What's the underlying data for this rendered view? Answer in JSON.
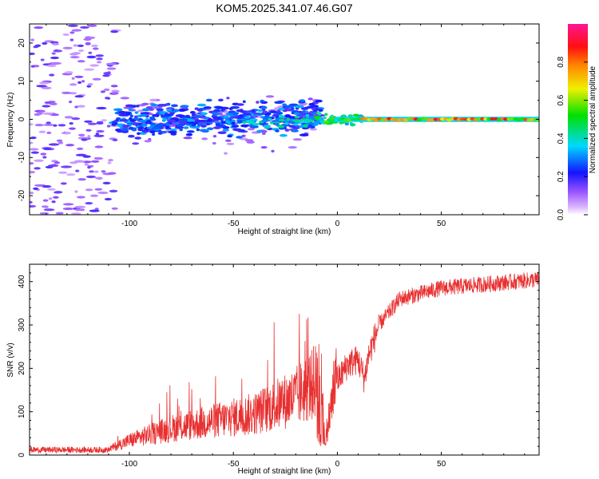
{
  "figure_title": "KOM5.2025.341.07.46.G07",
  "chart_data": [
    {
      "type": "heatmap",
      "xlabel": "Height of straight line (km)",
      "ylabel": "Frequency (Hz)",
      "xlim": [
        -148,
        97
      ],
      "ylim": [
        -25,
        25
      ],
      "x_ticks": [
        "-100",
        "-50",
        "0",
        "50"
      ],
      "y_ticks": [
        "-20",
        "-10",
        "0",
        "10",
        "20"
      ],
      "colorbar": {
        "label": "Normalized spectral amplitude",
        "range": [
          0,
          1
        ],
        "ticks": [
          "0.0",
          "0.2",
          "0.4",
          "0.6",
          "0.8"
        ],
        "colormap": "rainbow (white-violet, blue, cyan, green, yellow, orange, red, magenta)"
      },
      "description": "Scattered weak energy (amplitude 0.05-0.2) spread over -25..25 Hz below -100 km, concentrating near 0 Hz with amplitudes 0.2-0.5 between -100 and 0 km, and a coherent narrow band at ~0 Hz with amplitudes 0.6-0.9 from 0 to 97 km."
    },
    {
      "type": "line",
      "xlabel": "Height of straight line (km)",
      "ylabel": "SNR (v/v)",
      "xlim": [
        -148,
        97
      ],
      "ylim": [
        0,
        440
      ],
      "x_ticks": [
        "-100",
        "-50",
        "0",
        "50"
      ],
      "y_ticks": [
        "0",
        "100",
        "200",
        "300",
        "400"
      ],
      "color": "#e83030",
      "trend": {
        "x": [
          -148,
          -110,
          -100,
          -80,
          -60,
          -40,
          -20,
          -8,
          -6,
          0,
          5,
          10,
          13,
          15,
          20,
          30,
          50,
          97
        ],
        "y": [
          12,
          12,
          30,
          55,
          70,
          85,
          120,
          160,
          30,
          170,
          210,
          220,
          175,
          230,
          300,
          360,
          385,
          405
        ]
      }
    }
  ]
}
